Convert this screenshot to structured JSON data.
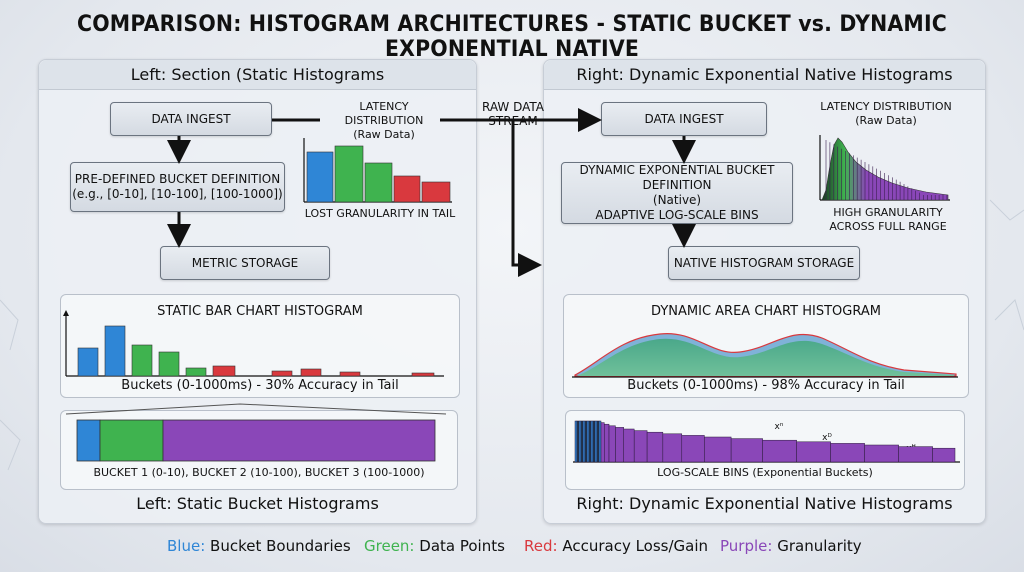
{
  "title": "COMPARISON: HISTOGRAM ARCHITECTURES - STATIC BUCKET vs. DYNAMIC EXPONENTIAL NATIVE",
  "left": {
    "header": "Left: Section (Static Histograms",
    "footer": "Left: Static Bucket Histograms",
    "data_ingest": "DATA INGEST",
    "bucket_def_line1": "PRE-DEFINED BUCKET DEFINITION",
    "bucket_def_line2": "(e.g., [0-10], [10-100], [100-1000])",
    "metric_storage": "METRIC STORAGE",
    "latency_title": "LATENCY DISTRIBUTION",
    "latency_sub": "(Raw Data)",
    "mini_caption": "LOST GRANULARITY IN TAIL",
    "chart_title": "STATIC BAR CHART HISTOGRAM",
    "chart_caption": "Buckets (0-1000ms) - 30% Accuracy in Tail",
    "bucket_bar_caption": "BUCKET 1 (0-10), BUCKET 2 (10-100), BUCKET 3 (100-1000)"
  },
  "raw_stream": "RAW DATA STREAM",
  "right": {
    "header": "Right: Dynamic Exponential Native Histograms",
    "footer": "Right: Dynamic Exponential Native Histograms",
    "data_ingest": "DATA INGEST",
    "bucket_def_line1": "DYNAMIC EXPONENTIAL BUCKET DEFINITION",
    "bucket_def_line2": "(Native)",
    "bucket_def_line3": "ADAPTIVE LOG-SCALE BINS",
    "native_storage": "NATIVE HISTOGRAM STORAGE",
    "latency_title": "LATENCY DISTRIBUTION",
    "latency_sub": "(Raw Data)",
    "mini_caption_line1": "HIGH GRANULARITY",
    "mini_caption_line2": "ACROSS FULL RANGE",
    "chart_title": "DYNAMIC AREA CHART HISTOGRAM",
    "chart_caption": "Buckets (0-1000ms) - 98% Accuracy in Tail",
    "logbins_caption": "LOG-SCALE BINS (Exponential Buckets)",
    "exp_label_1": "xⁿ",
    "exp_label_2": "xᴰ",
    "exp_label_3": "xᴴ"
  },
  "legend": {
    "blue_key": "Blue:",
    "blue_text": "Bucket Boundaries",
    "green_key": "Green:",
    "green_text": "Data Points",
    "red_key": "Red:",
    "red_text": "Accuracy Loss/Gain",
    "purple_key": "Purple:",
    "purple_text": "Granularity"
  },
  "colors": {
    "blue": "#2f86d6",
    "green": "#3fb34f",
    "red": "#d9393e",
    "purple": "#8a47b8",
    "teal": "#4faf8a"
  }
}
